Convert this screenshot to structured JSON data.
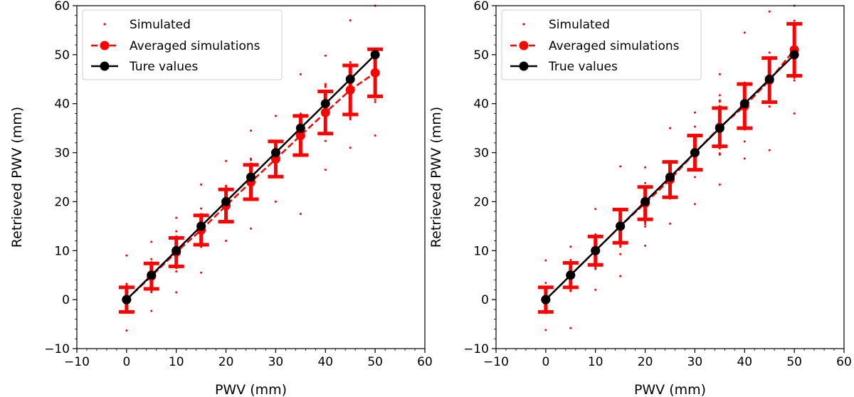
{
  "chart_data": [
    {
      "type": "scatter",
      "panel": "left",
      "xlabel": "PWV (mm)",
      "ylabel": "Retrieved PWV (mm)",
      "xlim": [
        -10,
        60
      ],
      "ylim": [
        -10,
        60
      ],
      "xticks": [
        -10,
        0,
        10,
        20,
        30,
        40,
        50,
        60
      ],
      "yticks": [
        -10,
        0,
        10,
        20,
        30,
        40,
        50,
        60
      ],
      "grid": false,
      "legend_position": "top-left",
      "legend": [
        "Simulated",
        "Averaged simulations",
        "Ture values"
      ],
      "x": [
        0,
        5,
        10,
        15,
        20,
        25,
        30,
        35,
        40,
        45,
        50
      ],
      "series": [
        {
          "name": "Simulated",
          "style": "scatter",
          "color": "#ff0000",
          "spread_min": [
            -6.3,
            -2.3,
            1.5,
            5.5,
            12.0,
            14.5,
            20.0,
            17.5,
            26.5,
            31.0,
            33.5
          ],
          "spread_max": [
            9.0,
            11.8,
            16.7,
            23.5,
            28.3,
            34.5,
            37.5,
            46.0,
            49.8,
            57.0,
            60.0
          ]
        },
        {
          "name": "Averaged simulations",
          "style": "dashed-line-markers",
          "color": "#ff0000",
          "values": [
            0.0,
            4.8,
            9.7,
            14.2,
            19.2,
            24.0,
            28.7,
            33.5,
            38.2,
            42.8,
            46.3
          ],
          "error": [
            2.5,
            2.6,
            2.9,
            3.0,
            3.3,
            3.5,
            3.6,
            4.0,
            4.3,
            5.0,
            4.8
          ]
        },
        {
          "name": "Ture values",
          "style": "line-markers",
          "color": "#000000",
          "values": [
            0,
            5,
            10,
            15,
            20,
            25,
            30,
            35,
            40,
            45,
            50
          ]
        }
      ]
    },
    {
      "type": "scatter",
      "panel": "right",
      "xlabel": "PWV (mm)",
      "ylabel": "Retrieved PWV (mm)",
      "xlim": [
        -10,
        60
      ],
      "ylim": [
        -10,
        60
      ],
      "xticks": [
        -10,
        0,
        10,
        20,
        30,
        40,
        50,
        60
      ],
      "yticks": [
        -10,
        0,
        10,
        20,
        30,
        40,
        50,
        60
      ],
      "grid": false,
      "legend_position": "top-left",
      "legend": [
        "Simulated",
        "Averaged simulations",
        "True values"
      ],
      "x": [
        0,
        5,
        10,
        15,
        20,
        25,
        30,
        35,
        40,
        45,
        50
      ],
      "series": [
        {
          "name": "Simulated",
          "style": "scatter",
          "color": "#ff0000",
          "spread_min": [
            -6.2,
            -5.8,
            2.0,
            4.8,
            11.0,
            15.5,
            19.5,
            23.5,
            28.8,
            30.5,
            38.0
          ],
          "spread_max": [
            8.0,
            10.8,
            18.5,
            27.2,
            27.0,
            35.0,
            38.2,
            46.0,
            54.5,
            58.8,
            60.0
          ]
        },
        {
          "name": "Averaged simulations",
          "style": "dashed-line-markers",
          "color": "#ff0000",
          "values": [
            0.0,
            5.0,
            10.0,
            15.0,
            19.7,
            24.5,
            30.0,
            35.2,
            39.5,
            44.8,
            51.0
          ],
          "error": [
            2.5,
            2.5,
            2.9,
            3.4,
            3.3,
            3.6,
            3.5,
            3.9,
            4.5,
            4.5,
            5.3
          ]
        },
        {
          "name": "True values",
          "style": "line-markers",
          "color": "#000000",
          "values": [
            0,
            5,
            10,
            15,
            20,
            25,
            30,
            35,
            40,
            45,
            50
          ]
        }
      ]
    }
  ]
}
